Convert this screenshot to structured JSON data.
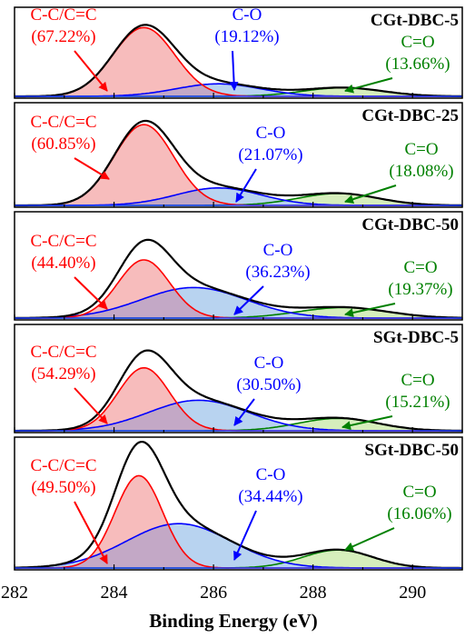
{
  "chart_data": {
    "type": "area",
    "xlabel": "Binding Energy (eV)",
    "xlim": [
      282,
      291
    ],
    "xticks": [
      "282",
      "284",
      "286",
      "288",
      "290"
    ],
    "colors": {
      "cc": "#ff0000",
      "co": "#0000ff",
      "coo": "#008000",
      "envelope": "#000000"
    },
    "panels": [
      {
        "title": "CGt-DBC-5",
        "cc": {
          "label": "C-C/C=C",
          "percent": "(67.22%)",
          "center": 284.6,
          "sigma": 0.62,
          "height": 0.88
        },
        "co": {
          "label": "C-O",
          "percent": "(19.12%)",
          "center": 286.1,
          "sigma": 0.85,
          "height": 0.16
        },
        "coo": {
          "label": "C=O",
          "percent": "(13.66%)",
          "center": 288.6,
          "sigma": 0.8,
          "height": 0.11
        }
      },
      {
        "title": "CGt-DBC-25",
        "cc": {
          "label": "C-C/C=C",
          "percent": "(60.85%)",
          "center": 284.6,
          "sigma": 0.6,
          "height": 0.88
        },
        "co": {
          "label": "C-O",
          "percent": "(21.07%)",
          "center": 286.1,
          "sigma": 0.85,
          "height": 0.19
        },
        "coo": {
          "label": "C=O",
          "percent": "(18.08%)",
          "center": 288.5,
          "sigma": 0.8,
          "height": 0.13
        }
      },
      {
        "title": "CGt-DBC-50",
        "cc": {
          "label": "C-C/C=C",
          "percent": "(44.40%)",
          "center": 284.6,
          "sigma": 0.52,
          "height": 0.61
        },
        "co": {
          "label": "C-O",
          "percent": "(36.23%)",
          "center": 285.6,
          "sigma": 1.05,
          "height": 0.32
        },
        "coo": {
          "label": "C=O",
          "percent": "(19.37%)",
          "center": 288.6,
          "sigma": 0.9,
          "height": 0.11
        }
      },
      {
        "title": "SGt-DBC-5",
        "cc": {
          "label": "C-C/C=C",
          "percent": "(54.29%)",
          "center": 284.6,
          "sigma": 0.52,
          "height": 0.66
        },
        "co": {
          "label": "C-O",
          "percent": "(30.50%)",
          "center": 285.7,
          "sigma": 1.0,
          "height": 0.32
        },
        "coo": {
          "label": "C=O",
          "percent": "(15.21%)",
          "center": 288.5,
          "sigma": 0.8,
          "height": 0.13
        }
      },
      {
        "title": "SGt-DBC-50",
        "cc": {
          "label": "C-C/C=C",
          "percent": "(49.50%)",
          "center": 284.5,
          "sigma": 0.48,
          "height": 0.77
        },
        "co": {
          "label": "C-O",
          "percent": "(34.44%)",
          "center": 285.3,
          "sigma": 1.05,
          "height": 0.37
        },
        "coo": {
          "label": "C=O",
          "percent": "(16.06%)",
          "center": 288.5,
          "sigma": 0.7,
          "height": 0.15
        }
      }
    ]
  }
}
